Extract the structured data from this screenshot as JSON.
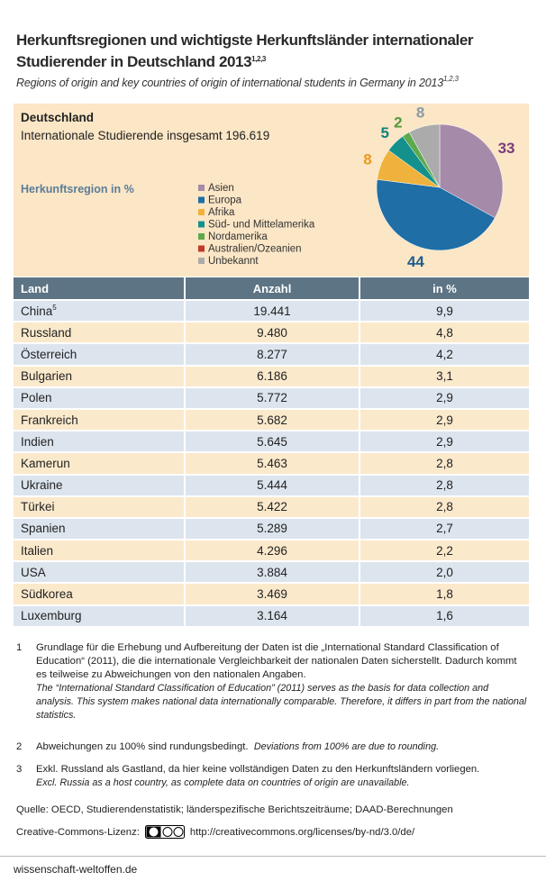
{
  "header": {
    "title": "Herkunftsregionen und wichtigste Herkunftsländer internationaler Studierender in Deutschland 2013",
    "title_sup": "1,2,3",
    "subtitle": "Regions of origin and key countries of origin of international students in Germany in 2013",
    "subtitle_sup": "1,2,3"
  },
  "summary": {
    "heading": "Deutschland",
    "text": "Internationale Studierende insgesamt 196.619"
  },
  "chart_data": {
    "type": "pie",
    "title": "Herkunftsregion in %",
    "categories": [
      "Asien",
      "Europa",
      "Afrika",
      "Süd- und Mittelamerika",
      "Nordamerika",
      "Australien/Ozeanien",
      "Unbekannt"
    ],
    "values": [
      33,
      44,
      8,
      5,
      2,
      0,
      8
    ],
    "colors": [
      "#a68aa9",
      "#1f6ea6",
      "#efb23c",
      "#14918c",
      "#5ea94c",
      "#c0392b",
      "#ababab"
    ],
    "label_colors": [
      "#7a3c78",
      "#1f5c8e",
      "#e89a1a",
      "#0f8380",
      "#4f9a3c",
      "#c0392b",
      "#8a9aa5"
    ]
  },
  "table": {
    "header": [
      "Land",
      "Anzahl",
      "in %"
    ],
    "rows": [
      [
        "China",
        "19.441",
        "9,9"
      ],
      [
        "Russland",
        "9.480",
        "4,8"
      ],
      [
        "Österreich",
        "8.277",
        "4,2"
      ],
      [
        "Bulgarien",
        "6.186",
        "3,1"
      ],
      [
        "Polen",
        "5.772",
        "2,9"
      ],
      [
        "Frankreich",
        "5.682",
        "2,9"
      ],
      [
        "Indien",
        "5.645",
        "2,9"
      ],
      [
        "Kamerun",
        "5.463",
        "2,8"
      ],
      [
        "Ukraine",
        "5.444",
        "2,8"
      ],
      [
        "Türkei",
        "5.422",
        "2,8"
      ],
      [
        "Spanien",
        "5.289",
        "2,7"
      ],
      [
        "Italien",
        "4.296",
        "2,2"
      ],
      [
        "USA",
        "3.884",
        "2,0"
      ],
      [
        "Südkorea",
        "3.469",
        "1,8"
      ],
      [
        "Luxemburg",
        "3.164",
        "1,6"
      ]
    ],
    "china_sup": "5"
  },
  "footnotes": [
    {
      "number": "1",
      "text": "Grundlage für die Erhebung und Aufbereitung der Daten ist die „International Standard Classification of Education“ (2011), die die internationale Vergleichbarkeit der nationalen Daten sicherstellt. Dadurch kommt es teilweise zu Abweichungen von den nationalen Angaben.",
      "english": "The “International Standard Classification of Education” (2011) serves as the basis for data collection and analysis. This system makes national data internationally comparable. Therefore, it differs in part from the national statistics."
    },
    {
      "number": "2",
      "text": "Abweichungen zu 100% sind rundungsbedingt.",
      "english": "Deviations from 100% are due to rounding."
    },
    {
      "number": "3",
      "text": "Exkl. Russland als Gastland, da hier keine vollständigen Daten zu den Herkunftsländern vorliegen.",
      "english": "Excl. Russia as a host country, as complete data on countries of origin are unavailable."
    }
  ],
  "source": "Quelle: OECD, Studierendenstatistik; länderspezifische Berichtszeiträume; DAAD-Berechnungen",
  "license": {
    "label": "Creative-Commons-Lizenz:",
    "url": "http://creativecommons.org/licenses/by-nd/3.0/de/"
  },
  "footer": "wissenschaft-weltoffen.de"
}
